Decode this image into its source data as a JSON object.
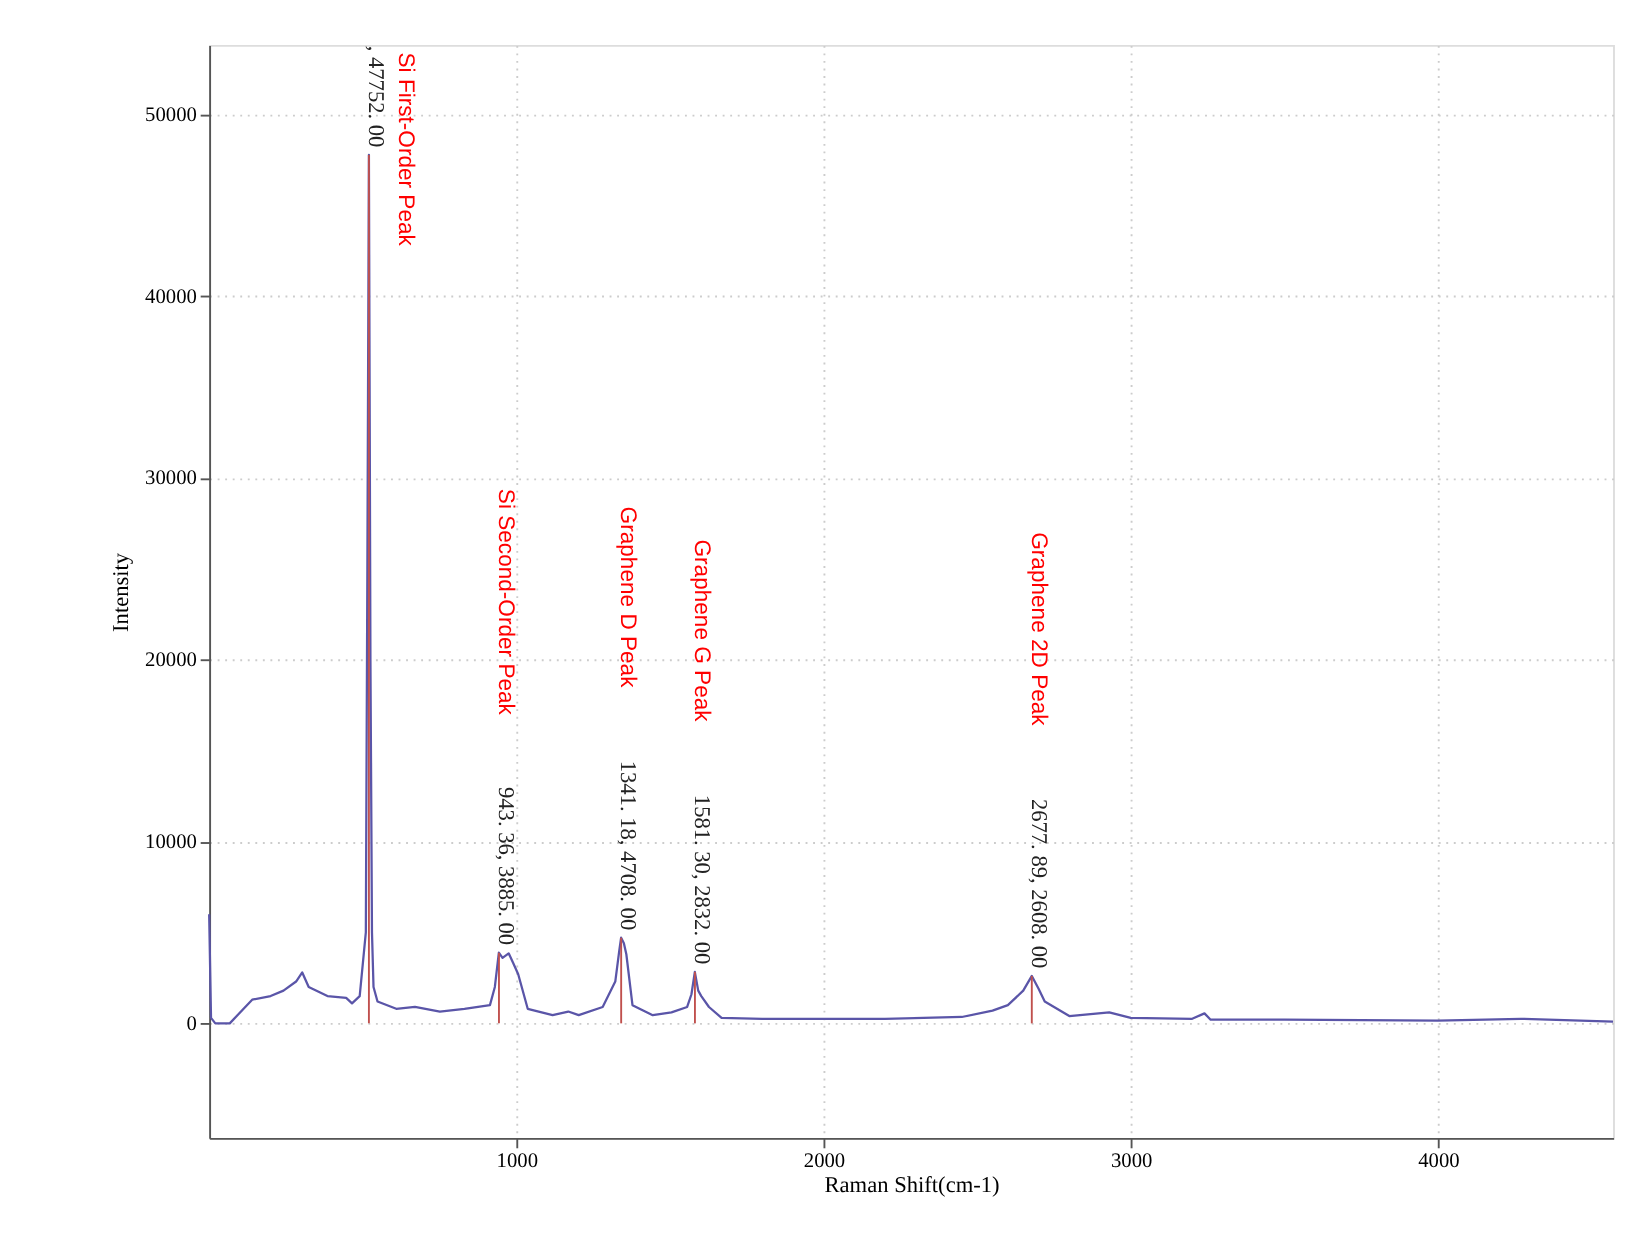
{
  "chart_data": {
    "type": "line",
    "xlabel": "Raman Shift(cm-1)",
    "ylabel": "Intensity",
    "xlim": [
      0,
      4570
    ],
    "ylim": [
      -6300,
      53800
    ],
    "xticks": [
      1000,
      2000,
      3000,
      4000
    ],
    "yticks": [
      0,
      10000,
      20000,
      30000,
      40000,
      50000
    ],
    "grid": true,
    "marker": "none",
    "line_style": "solid",
    "series": [
      {
        "color": "#5a55a8",
        "x": [
          0,
          6,
          20,
          67,
          140,
          200,
          242,
          283,
          303,
          324,
          385,
          446,
          465,
          490,
          510,
          515,
          520,
          525,
          530,
          535,
          548,
          609,
          670,
          751,
          831,
          914,
          930,
          943,
          955,
          975,
          990,
          1006,
          1037,
          1118,
          1169,
          1203,
          1281,
          1322,
          1335,
          1341,
          1350,
          1358,
          1378,
          1444,
          1505,
          1556,
          1570,
          1581,
          1592,
          1602,
          1627,
          1668,
          1800,
          2000,
          2200,
          2450,
          2550,
          2600,
          2650,
          2678,
          2700,
          2720,
          2800,
          2930,
          3000,
          3200,
          3240,
          3260,
          3500,
          4000,
          4270,
          4570
        ],
        "values": [
          6000,
          300,
          0,
          0,
          1300,
          1500,
          1800,
          2300,
          2800,
          2000,
          1500,
          1400,
          1100,
          1500,
          5000,
          25000,
          47752,
          20000,
          5000,
          2000,
          1200,
          800,
          900,
          650,
          800,
          1000,
          2000,
          3885,
          3600,
          3850,
          3300,
          2700,
          800,
          450,
          650,
          450,
          900,
          2300,
          4000,
          4708,
          4400,
          3800,
          1000,
          450,
          600,
          900,
          1600,
          2832,
          1800,
          1500,
          900,
          300,
          250,
          250,
          250,
          350,
          700,
          1000,
          1800,
          2608,
          1900,
          1200,
          400,
          600,
          300,
          250,
          550,
          200,
          200,
          150,
          250,
          100
        ]
      }
    ],
    "annotations": [
      {
        "text": ", 47752. 00",
        "x": 520,
        "y": 47752
      },
      "Si First-Order Peak",
      {
        "text": "943. 36, 3885. 00",
        "x": 943.36,
        "y": 3885
      },
      "Si Second-Order Peak",
      {
        "text": "1341. 18, 4708. 00",
        "x": 1341.18,
        "y": 4708
      },
      "Graphene D Peak",
      {
        "text": "1581. 30, 2832. 00",
        "x": 1581.3,
        "y": 2832
      },
      "Graphene G Peak",
      {
        "text": "2677. 89, 2608. 00",
        "x": 2677.89,
        "y": 2608
      },
      "Graphene 2D Peak"
    ]
  }
}
